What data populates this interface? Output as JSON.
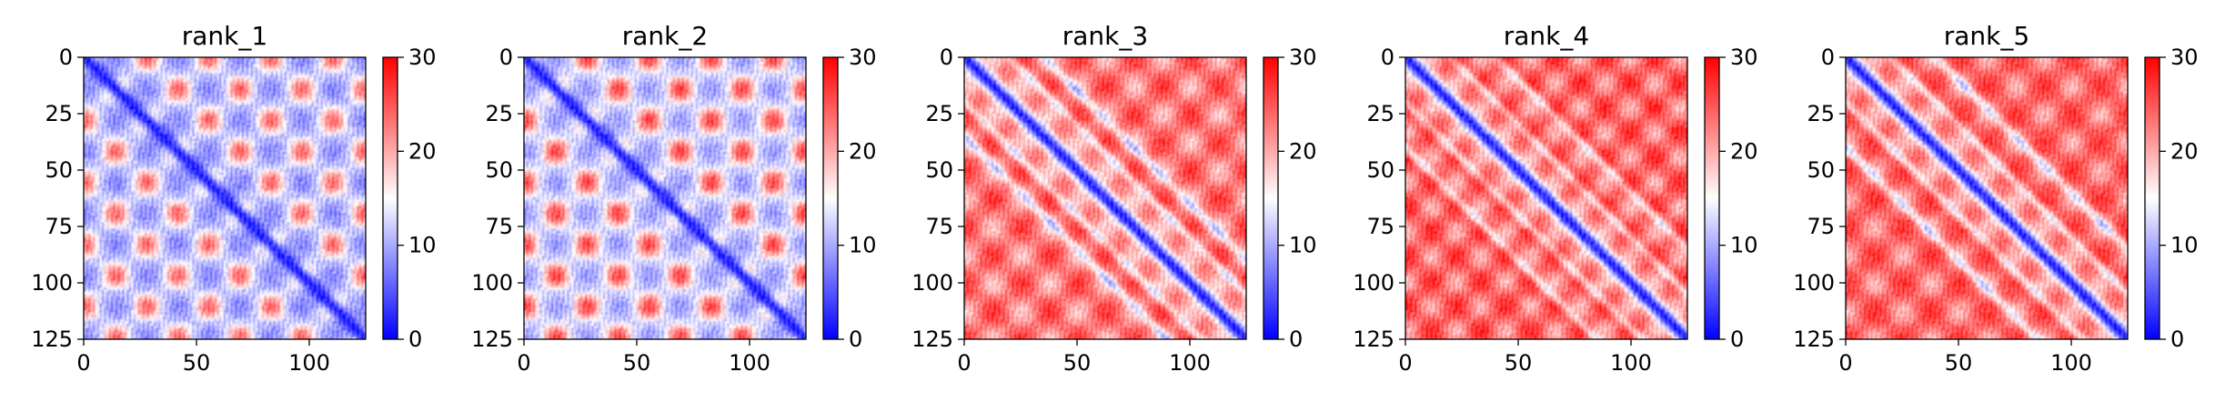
{
  "chart_data": [
    {
      "type": "heatmap",
      "title": "rank_1",
      "matrix_size": 125,
      "xlim": [
        0,
        125
      ],
      "ylim": [
        125,
        0
      ],
      "xticks": [
        0,
        50,
        100
      ],
      "yticks": [
        0,
        25,
        50,
        75,
        100,
        125
      ],
      "colorbar": {
        "min": 0,
        "max": 30,
        "ticks": [
          0,
          10,
          20,
          30
        ],
        "colormap": "bwr"
      },
      "diagonal_value": 2,
      "background_value": 12,
      "secondary_diagonals": [],
      "periodic_pattern": {
        "period": 27.5,
        "high_value": 24,
        "low_value": 8
      }
    },
    {
      "type": "heatmap",
      "title": "rank_2",
      "matrix_size": 125,
      "xlim": [
        0,
        125
      ],
      "ylim": [
        125,
        0
      ],
      "xticks": [
        0,
        50,
        100
      ],
      "yticks": [
        0,
        25,
        50,
        75,
        100,
        125
      ],
      "colorbar": {
        "min": 0,
        "max": 30,
        "ticks": [
          0,
          10,
          20,
          30
        ],
        "colormap": "bwr"
      },
      "diagonal_value": 2,
      "background_value": 13,
      "secondary_diagonals": [],
      "periodic_pattern": {
        "period": 27.5,
        "high_value": 26,
        "low_value": 9
      }
    },
    {
      "type": "heatmap",
      "title": "rank_3",
      "matrix_size": 125,
      "xlim": [
        0,
        125
      ],
      "ylim": [
        125,
        0
      ],
      "xticks": [
        0,
        50,
        100
      ],
      "yticks": [
        0,
        25,
        50,
        75,
        100,
        125
      ],
      "colorbar": {
        "min": 0,
        "max": 30,
        "ticks": [
          0,
          10,
          20,
          30
        ],
        "colormap": "bwr"
      },
      "diagonal_value": 2,
      "background_value": 23,
      "secondary_diagonals": [
        -35,
        -20,
        20,
        35
      ],
      "periodic_pattern": {
        "period": 25,
        "high_value": 27,
        "low_value": 18
      }
    },
    {
      "type": "heatmap",
      "title": "rank_4",
      "matrix_size": 125,
      "xlim": [
        0,
        125
      ],
      "ylim": [
        125,
        0
      ],
      "xticks": [
        0,
        50,
        100
      ],
      "yticks": [
        0,
        25,
        50,
        75,
        100,
        125
      ],
      "colorbar": {
        "min": 0,
        "max": 30,
        "ticks": [
          0,
          10,
          20,
          30
        ],
        "colormap": "bwr"
      },
      "diagonal_value": 2,
      "background_value": 24,
      "secondary_diagonals": [
        -40,
        -20,
        20,
        40
      ],
      "periodic_pattern": {
        "period": 22,
        "high_value": 28,
        "low_value": 19
      }
    },
    {
      "type": "heatmap",
      "title": "rank_5",
      "matrix_size": 125,
      "xlim": [
        0,
        125
      ],
      "ylim": [
        125,
        0
      ],
      "xticks": [
        0,
        50,
        100
      ],
      "yticks": [
        0,
        25,
        50,
        75,
        100,
        125
      ],
      "colorbar": {
        "min": 0,
        "max": 30,
        "ticks": [
          0,
          10,
          20,
          30
        ],
        "colormap": "bwr"
      },
      "diagonal_value": 2,
      "background_value": 24,
      "secondary_diagonals": [
        -40,
        -20,
        20,
        40
      ],
      "periodic_pattern": {
        "period": 25,
        "high_value": 27,
        "low_value": 19
      }
    }
  ]
}
